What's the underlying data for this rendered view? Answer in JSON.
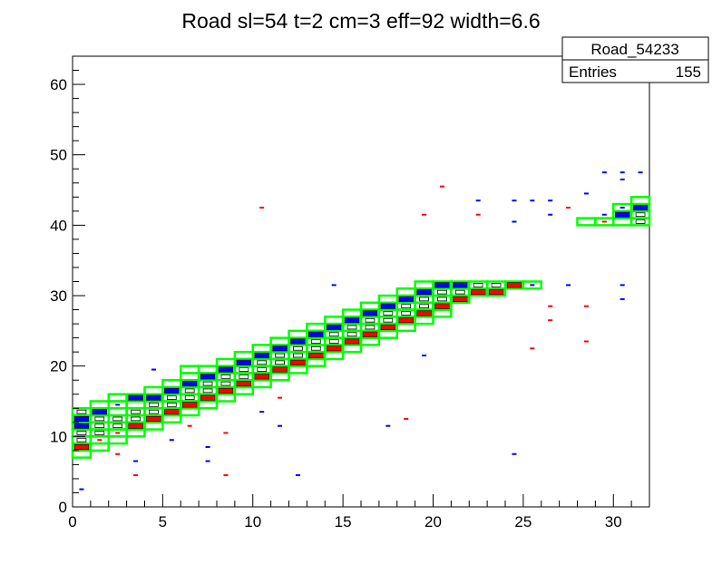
{
  "title": "Road sl=54 t=2 cm=3 eff=92 width=6.6",
  "stats_box": {
    "name": "Road_54233",
    "entries_label": "Entries",
    "entries_value": "155"
  },
  "colors": {
    "road_outline": "#00ff00",
    "blue_cell": "#0000ff",
    "red_cell": "#ff0000",
    "black_cell": "#000000"
  },
  "chart_data": {
    "type": "heatmap",
    "title": "Road sl=54 t=2 cm=3 eff=92 width=6.6",
    "xlabel": "",
    "ylabel": "",
    "xlim": [
      0,
      32
    ],
    "ylim": [
      0,
      64
    ],
    "x_ticks": [
      0,
      5,
      10,
      15,
      20,
      25,
      30
    ],
    "y_ticks": [
      0,
      10,
      20,
      30,
      40,
      50,
      60
    ],
    "x_tick_labels": [
      "0",
      "5",
      "10",
      "15",
      "20",
      "25",
      "30"
    ],
    "y_tick_labels": [
      "0",
      "10",
      "20",
      "30",
      "40",
      "50",
      "60"
    ],
    "road_cells": [
      [
        0,
        7
      ],
      [
        0,
        8
      ],
      [
        0,
        9
      ],
      [
        0,
        10
      ],
      [
        0,
        11
      ],
      [
        0,
        12
      ],
      [
        0,
        13
      ],
      [
        1,
        8
      ],
      [
        1,
        9
      ],
      [
        1,
        10
      ],
      [
        1,
        11
      ],
      [
        1,
        12
      ],
      [
        1,
        13
      ],
      [
        1,
        14
      ],
      [
        2,
        9
      ],
      [
        2,
        10
      ],
      [
        2,
        11
      ],
      [
        2,
        12
      ],
      [
        2,
        13
      ],
      [
        2,
        14
      ],
      [
        2,
        15
      ],
      [
        3,
        10
      ],
      [
        3,
        11
      ],
      [
        3,
        12
      ],
      [
        3,
        13
      ],
      [
        3,
        14
      ],
      [
        3,
        15
      ],
      [
        4,
        11
      ],
      [
        4,
        12
      ],
      [
        4,
        13
      ],
      [
        4,
        14
      ],
      [
        4,
        15
      ],
      [
        4,
        16
      ],
      [
        5,
        12
      ],
      [
        5,
        13
      ],
      [
        5,
        14
      ],
      [
        5,
        15
      ],
      [
        5,
        16
      ],
      [
        5,
        17
      ],
      [
        6,
        13
      ],
      [
        6,
        14
      ],
      [
        6,
        15
      ],
      [
        6,
        16
      ],
      [
        6,
        17
      ],
      [
        6,
        18
      ],
      [
        6,
        19
      ],
      [
        7,
        14
      ],
      [
        7,
        15
      ],
      [
        7,
        16
      ],
      [
        7,
        17
      ],
      [
        7,
        18
      ],
      [
        7,
        19
      ],
      [
        8,
        15
      ],
      [
        8,
        16
      ],
      [
        8,
        17
      ],
      [
        8,
        18
      ],
      [
        8,
        19
      ],
      [
        8,
        20
      ],
      [
        9,
        16
      ],
      [
        9,
        17
      ],
      [
        9,
        18
      ],
      [
        9,
        19
      ],
      [
        9,
        20
      ],
      [
        9,
        21
      ],
      [
        10,
        17
      ],
      [
        10,
        18
      ],
      [
        10,
        19
      ],
      [
        10,
        20
      ],
      [
        10,
        21
      ],
      [
        10,
        22
      ],
      [
        11,
        18
      ],
      [
        11,
        19
      ],
      [
        11,
        20
      ],
      [
        11,
        21
      ],
      [
        11,
        22
      ],
      [
        11,
        23
      ],
      [
        12,
        19
      ],
      [
        12,
        20
      ],
      [
        12,
        21
      ],
      [
        12,
        22
      ],
      [
        12,
        23
      ],
      [
        12,
        24
      ],
      [
        13,
        20
      ],
      [
        13,
        21
      ],
      [
        13,
        22
      ],
      [
        13,
        23
      ],
      [
        13,
        24
      ],
      [
        13,
        25
      ],
      [
        14,
        21
      ],
      [
        14,
        22
      ],
      [
        14,
        23
      ],
      [
        14,
        24
      ],
      [
        14,
        25
      ],
      [
        14,
        26
      ],
      [
        15,
        22
      ],
      [
        15,
        23
      ],
      [
        15,
        24
      ],
      [
        15,
        25
      ],
      [
        15,
        26
      ],
      [
        15,
        27
      ],
      [
        16,
        23
      ],
      [
        16,
        24
      ],
      [
        16,
        25
      ],
      [
        16,
        26
      ],
      [
        16,
        27
      ],
      [
        16,
        28
      ],
      [
        17,
        24
      ],
      [
        17,
        25
      ],
      [
        17,
        26
      ],
      [
        17,
        27
      ],
      [
        17,
        28
      ],
      [
        17,
        29
      ],
      [
        18,
        25
      ],
      [
        18,
        26
      ],
      [
        18,
        27
      ],
      [
        18,
        28
      ],
      [
        18,
        29
      ],
      [
        18,
        30
      ],
      [
        19,
        26
      ],
      [
        19,
        27
      ],
      [
        19,
        28
      ],
      [
        19,
        29
      ],
      [
        19,
        30
      ],
      [
        19,
        31
      ],
      [
        20,
        27
      ],
      [
        20,
        28
      ],
      [
        20,
        29
      ],
      [
        20,
        30
      ],
      [
        20,
        31
      ],
      [
        21,
        29
      ],
      [
        21,
        30
      ],
      [
        21,
        31
      ],
      [
        22,
        30
      ],
      [
        22,
        31
      ],
      [
        23,
        30
      ],
      [
        23,
        31
      ],
      [
        24,
        31
      ],
      [
        25,
        31
      ],
      [
        28,
        40
      ],
      [
        29,
        40
      ],
      [
        30,
        40
      ],
      [
        30,
        41
      ],
      [
        30,
        42
      ],
      [
        31,
        40
      ],
      [
        31,
        41
      ],
      [
        31,
        42
      ],
      [
        31,
        43
      ]
    ],
    "hits": [
      [
        0,
        11,
        "blue",
        2
      ],
      [
        0,
        12,
        "blue",
        2
      ],
      [
        0,
        8,
        "red",
        2
      ],
      [
        0,
        10,
        "black",
        1
      ],
      [
        0,
        9,
        "black",
        1
      ],
      [
        0,
        13,
        "black",
        1
      ],
      [
        0,
        2,
        "blue",
        1
      ],
      [
        1,
        13,
        "blue",
        2
      ],
      [
        1,
        12,
        "black",
        1
      ],
      [
        1,
        11,
        "black",
        1
      ],
      [
        1,
        10,
        "black",
        1
      ],
      [
        1,
        9,
        "red",
        1
      ],
      [
        2,
        14,
        "blue",
        1
      ],
      [
        2,
        12,
        "black",
        1
      ],
      [
        2,
        11,
        "black",
        1
      ],
      [
        2,
        10,
        "red",
        1
      ],
      [
        2,
        7,
        "red",
        1
      ],
      [
        3,
        15,
        "blue",
        2
      ],
      [
        3,
        13,
        "black",
        1
      ],
      [
        3,
        12,
        "black",
        1
      ],
      [
        3,
        11,
        "red",
        2
      ],
      [
        3,
        4,
        "red",
        1
      ],
      [
        3,
        6,
        "blue",
        1
      ],
      [
        4,
        15,
        "blue",
        2
      ],
      [
        4,
        14,
        "black",
        1
      ],
      [
        4,
        13,
        "black",
        1
      ],
      [
        4,
        12,
        "red",
        2
      ],
      [
        4,
        19,
        "blue",
        1
      ],
      [
        5,
        16,
        "blue",
        2
      ],
      [
        5,
        15,
        "black",
        1
      ],
      [
        5,
        14,
        "black",
        1
      ],
      [
        5,
        13,
        "red",
        2
      ],
      [
        5,
        9,
        "blue",
        1
      ],
      [
        6,
        17,
        "blue",
        2
      ],
      [
        6,
        16,
        "black",
        1
      ],
      [
        6,
        15,
        "black",
        1
      ],
      [
        6,
        14,
        "red",
        2
      ],
      [
        6,
        11,
        "red",
        1
      ],
      [
        7,
        18,
        "blue",
        2
      ],
      [
        7,
        17,
        "black",
        1
      ],
      [
        7,
        16,
        "black",
        1
      ],
      [
        7,
        15,
        "red",
        2
      ],
      [
        7,
        8,
        "blue",
        1
      ],
      [
        7,
        6,
        "blue",
        1
      ],
      [
        8,
        19,
        "blue",
        2
      ],
      [
        8,
        18,
        "black",
        1
      ],
      [
        8,
        17,
        "black",
        1
      ],
      [
        8,
        16,
        "red",
        2
      ],
      [
        8,
        4,
        "red",
        1
      ],
      [
        8,
        10,
        "red",
        1
      ],
      [
        9,
        20,
        "blue",
        2
      ],
      [
        9,
        19,
        "black",
        1
      ],
      [
        9,
        18,
        "black",
        1
      ],
      [
        9,
        17,
        "red",
        2
      ],
      [
        10,
        21,
        "blue",
        2
      ],
      [
        10,
        20,
        "black",
        1
      ],
      [
        10,
        19,
        "black",
        1
      ],
      [
        10,
        18,
        "red",
        2
      ],
      [
        10,
        42,
        "red",
        1
      ],
      [
        10,
        13,
        "blue",
        1
      ],
      [
        11,
        22,
        "blue",
        2
      ],
      [
        11,
        21,
        "black",
        1
      ],
      [
        11,
        20,
        "black",
        1
      ],
      [
        11,
        19,
        "red",
        2
      ],
      [
        11,
        15,
        "red",
        1
      ],
      [
        11,
        11,
        "blue",
        1
      ],
      [
        12,
        23,
        "blue",
        2
      ],
      [
        12,
        22,
        "black",
        1
      ],
      [
        12,
        21,
        "black",
        1
      ],
      [
        12,
        20,
        "red",
        2
      ],
      [
        12,
        4,
        "blue",
        1
      ],
      [
        13,
        24,
        "blue",
        2
      ],
      [
        13,
        23,
        "black",
        1
      ],
      [
        13,
        22,
        "black",
        1
      ],
      [
        13,
        21,
        "red",
        2
      ],
      [
        14,
        25,
        "blue",
        2
      ],
      [
        14,
        24,
        "black",
        1
      ],
      [
        14,
        23,
        "black",
        1
      ],
      [
        14,
        22,
        "red",
        2
      ],
      [
        14,
        31,
        "blue",
        1
      ],
      [
        15,
        26,
        "blue",
        2
      ],
      [
        15,
        25,
        "black",
        1
      ],
      [
        15,
        24,
        "black",
        1
      ],
      [
        15,
        23,
        "red",
        2
      ],
      [
        16,
        27,
        "blue",
        2
      ],
      [
        16,
        26,
        "black",
        1
      ],
      [
        16,
        25,
        "black",
        1
      ],
      [
        16,
        24,
        "red",
        2
      ],
      [
        17,
        28,
        "blue",
        2
      ],
      [
        17,
        27,
        "black",
        1
      ],
      [
        17,
        26,
        "black",
        1
      ],
      [
        17,
        25,
        "red",
        2
      ],
      [
        17,
        11,
        "blue",
        1
      ],
      [
        18,
        29,
        "blue",
        2
      ],
      [
        18,
        28,
        "black",
        1
      ],
      [
        18,
        27,
        "black",
        1
      ],
      [
        18,
        26,
        "red",
        2
      ],
      [
        18,
        12,
        "red",
        1
      ],
      [
        19,
        30,
        "blue",
        2
      ],
      [
        19,
        29,
        "black",
        1
      ],
      [
        19,
        28,
        "black",
        1
      ],
      [
        19,
        27,
        "red",
        2
      ],
      [
        19,
        21,
        "blue",
        1
      ],
      [
        19,
        41,
        "red",
        1
      ],
      [
        20,
        31,
        "blue",
        2
      ],
      [
        20,
        30,
        "black",
        1
      ],
      [
        20,
        29,
        "black",
        1
      ],
      [
        20,
        28,
        "red",
        2
      ],
      [
        20,
        45,
        "red",
        1
      ],
      [
        21,
        31,
        "blue",
        2
      ],
      [
        21,
        30,
        "black",
        1
      ],
      [
        21,
        29,
        "red",
        2
      ],
      [
        22,
        31,
        "black",
        1
      ],
      [
        22,
        30,
        "red",
        2
      ],
      [
        22,
        43,
        "blue",
        1
      ],
      [
        22,
        41,
        "red",
        1
      ],
      [
        23,
        31,
        "black",
        1
      ],
      [
        23,
        30,
        "red",
        2
      ],
      [
        24,
        31,
        "red",
        2
      ],
      [
        24,
        43,
        "blue",
        1
      ],
      [
        24,
        40,
        "blue",
        1
      ],
      [
        24,
        7,
        "blue",
        1
      ],
      [
        25,
        31,
        "blue",
        1
      ],
      [
        25,
        43,
        "blue",
        1
      ],
      [
        25,
        22,
        "red",
        1
      ],
      [
        26,
        43,
        "blue",
        1
      ],
      [
        26,
        41,
        "blue",
        1
      ],
      [
        26,
        28,
        "red",
        1
      ],
      [
        26,
        26,
        "red",
        1
      ],
      [
        27,
        31,
        "blue",
        1
      ],
      [
        27,
        42,
        "red",
        1
      ],
      [
        28,
        44,
        "blue",
        1
      ],
      [
        28,
        28,
        "red",
        1
      ],
      [
        28,
        23,
        "red",
        1
      ],
      [
        29,
        47,
        "blue",
        1
      ],
      [
        29,
        41,
        "blue",
        1
      ],
      [
        29,
        40,
        "red",
        1
      ],
      [
        30,
        47,
        "blue",
        1
      ],
      [
        30,
        46,
        "blue",
        1
      ],
      [
        30,
        41,
        "blue",
        2
      ],
      [
        30,
        42,
        "blue",
        1
      ],
      [
        30,
        31,
        "blue",
        1
      ],
      [
        30,
        29,
        "blue",
        1
      ],
      [
        31,
        47,
        "blue",
        1
      ],
      [
        31,
        42,
        "blue",
        2
      ],
      [
        31,
        41,
        "black",
        1
      ],
      [
        31,
        40,
        "black",
        1
      ]
    ]
  }
}
